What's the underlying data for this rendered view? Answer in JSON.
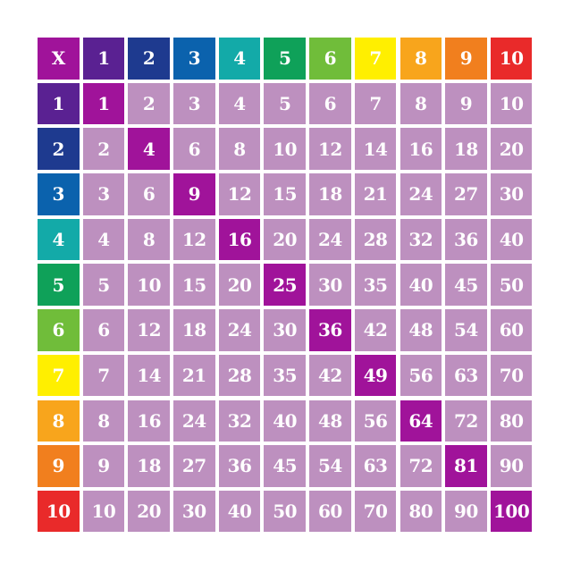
{
  "chart_data": {
    "type": "table",
    "corner_label": "X",
    "column_headers": [
      "1",
      "2",
      "3",
      "4",
      "5",
      "6",
      "7",
      "8",
      "9",
      "10"
    ],
    "row_headers": [
      "1",
      "2",
      "3",
      "4",
      "5",
      "6",
      "7",
      "8",
      "9",
      "10"
    ],
    "rows": [
      [
        1,
        2,
        3,
        4,
        5,
        6,
        7,
        8,
        9,
        10
      ],
      [
        2,
        4,
        6,
        8,
        10,
        12,
        14,
        16,
        18,
        20
      ],
      [
        3,
        6,
        9,
        12,
        15,
        18,
        21,
        24,
        27,
        30
      ],
      [
        4,
        8,
        12,
        16,
        20,
        24,
        28,
        32,
        36,
        40
      ],
      [
        5,
        10,
        15,
        20,
        25,
        30,
        35,
        40,
        45,
        50
      ],
      [
        6,
        12,
        18,
        24,
        30,
        36,
        42,
        48,
        54,
        60
      ],
      [
        7,
        14,
        21,
        28,
        35,
        42,
        49,
        56,
        63,
        70
      ],
      [
        8,
        16,
        24,
        32,
        40,
        48,
        56,
        64,
        72,
        80
      ],
      [
        9,
        18,
        27,
        36,
        45,
        54,
        63,
        72,
        81,
        90
      ],
      [
        10,
        20,
        30,
        40,
        50,
        60,
        70,
        80,
        90,
        100
      ]
    ],
    "highlight": "diagonal (squares)"
  },
  "colors": {
    "corner": "#a0139a",
    "headers": [
      "#5a2192",
      "#1e3a8f",
      "#0b62ad",
      "#13aaa8",
      "#0fa159",
      "#70bd3a",
      "#ffef00",
      "#f8a51c",
      "#f17f1e",
      "#e92a2a"
    ],
    "cell": "#bd90bf",
    "diagonal": "#a0139a",
    "text": "#ffffff"
  }
}
